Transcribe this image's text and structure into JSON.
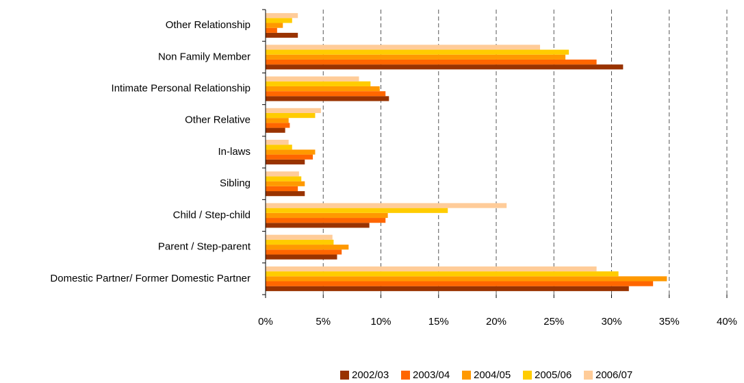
{
  "chart_data": {
    "type": "bar",
    "orientation": "horizontal",
    "categories": [
      "Other Relationship",
      "Non Family Member",
      "Intimate Personal Relationship",
      "Other Relative",
      "In-laws",
      "Sibling",
      "Child / Step-child",
      "Parent / Step-parent",
      "Domestic Partner/ Former Domestic Partner"
    ],
    "series": [
      {
        "name": "2002/03",
        "color": "#993300",
        "values": [
          2.8,
          31.0,
          10.7,
          1.7,
          3.4,
          3.4,
          9.0,
          6.2,
          31.5
        ]
      },
      {
        "name": "2003/04",
        "color": "#ff6600",
        "values": [
          1.0,
          28.7,
          10.4,
          2.1,
          4.1,
          2.8,
          10.4,
          6.6,
          33.6
        ]
      },
      {
        "name": "2004/05",
        "color": "#ff9900",
        "values": [
          1.5,
          26.0,
          9.9,
          2.0,
          4.3,
          3.4,
          10.6,
          7.2,
          34.8
        ]
      },
      {
        "name": "2005/06",
        "color": "#ffcc00",
        "values": [
          2.3,
          26.3,
          9.1,
          4.3,
          2.3,
          3.1,
          15.8,
          5.9,
          30.6
        ]
      },
      {
        "name": "2006/07",
        "color": "#ffcc99",
        "values": [
          2.8,
          23.8,
          8.1,
          4.8,
          2.0,
          2.9,
          20.9,
          5.8,
          28.7
        ]
      }
    ],
    "xlim": [
      0,
      40
    ],
    "xticks": [
      {
        "value": 0,
        "label": "0%"
      },
      {
        "value": 5,
        "label": "5%"
      },
      {
        "value": 10,
        "label": "10%"
      },
      {
        "value": 15,
        "label": "15%"
      },
      {
        "value": 20,
        "label": "20%"
      },
      {
        "value": 25,
        "label": "25%"
      },
      {
        "value": 30,
        "label": "30%"
      },
      {
        "value": 35,
        "label": "35%"
      },
      {
        "value": 40,
        "label": "40%"
      }
    ],
    "grid": true,
    "legend": "bottom"
  }
}
